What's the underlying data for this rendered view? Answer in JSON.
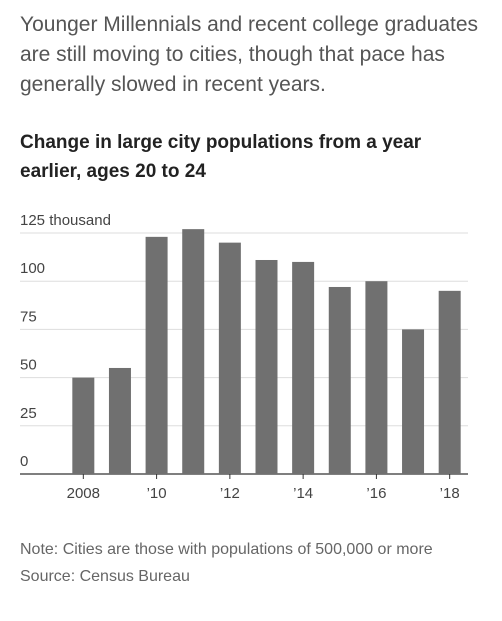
{
  "chart_data": {
    "type": "bar",
    "subtitle": "Younger Millennials and recent college graduates are still moving to cities, though that pace has generally slowed in recent years.",
    "title": "Change in large city populations from a year earlier, ages 20 to 24",
    "categories": [
      "2008",
      null,
      "’10",
      null,
      "’12",
      null,
      "’14",
      null,
      "’16",
      null,
      "’18"
    ],
    "values": [
      50,
      55,
      123,
      127,
      120,
      111,
      110,
      97,
      100,
      75,
      95
    ],
    "color": "#707070",
    "ylim": [
      0,
      125
    ],
    "yticks": [
      0,
      25,
      50,
      75,
      100,
      {
        "value": 125,
        "label": "125 thousand"
      }
    ],
    "grid": true,
    "note": "Note: Cities are those with populations of 500,000 or more",
    "source": "Source: Census Bureau"
  }
}
